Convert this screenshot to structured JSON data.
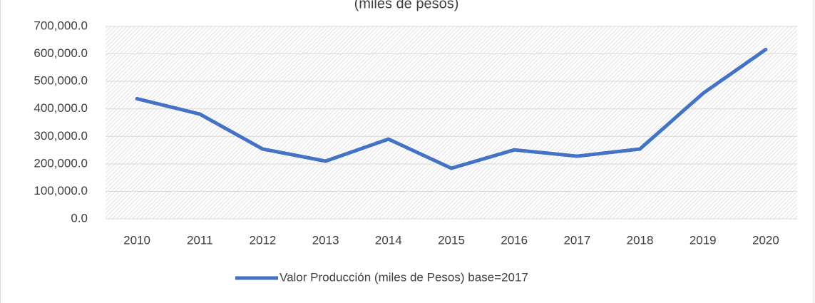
{
  "chart_data": {
    "type": "line",
    "title": "(miles de pesos)",
    "categories": [
      "2010",
      "2011",
      "2012",
      "2013",
      "2014",
      "2015",
      "2016",
      "2017",
      "2018",
      "2019",
      "2020"
    ],
    "series": [
      {
        "name": "Valor Producción (miles de Pesos) base=2017",
        "color": "#4472c4",
        "values": [
          437000,
          381000,
          254000,
          210000,
          290000,
          184000,
          251000,
          228000,
          254000,
          456000,
          616000
        ]
      }
    ],
    "ylim": [
      0,
      700000
    ],
    "yticks": [
      {
        "value": 0,
        "label": "0.0"
      },
      {
        "value": 100000,
        "label": "100,000.0"
      },
      {
        "value": 200000,
        "label": "200,000.0"
      },
      {
        "value": 300000,
        "label": "300,000.0"
      },
      {
        "value": 400000,
        "label": "400,000.0"
      },
      {
        "value": 500000,
        "label": "500,000.0"
      },
      {
        "value": 600000,
        "label": "600,000.0"
      },
      {
        "value": 700000,
        "label": "700,000.0"
      }
    ],
    "grid": true,
    "legend": "bottom"
  }
}
